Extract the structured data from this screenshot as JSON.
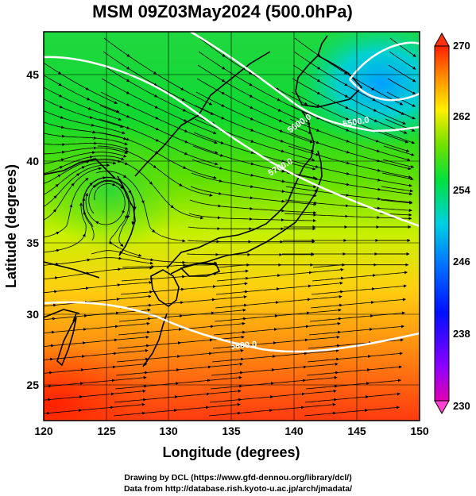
{
  "title": "MSM 09Z03May2024 (500.0hPa)",
  "x_axis": {
    "label": "Longitude (degrees)",
    "ticks": [
      "120",
      "125",
      "130",
      "135",
      "140",
      "145",
      "150"
    ],
    "range": [
      120,
      150
    ]
  },
  "y_axis": {
    "label": "Latitude  (degrees)",
    "ticks": [
      "25",
      "30",
      "35",
      "40",
      "45"
    ],
    "range": [
      22.4,
      47.6
    ]
  },
  "colorbar": {
    "ticks": [
      "270",
      "262",
      "254",
      "246",
      "238",
      "230"
    ],
    "range": [
      230,
      270
    ],
    "colors": [
      "#e000b0",
      "#8a00ff",
      "#0000ff",
      "#0066ff",
      "#00c8ff",
      "#00e8b0",
      "#00e000",
      "#80e000",
      "#ffff00",
      "#ffb000",
      "#ff5000",
      "#ff2000"
    ]
  },
  "contours": [
    {
      "label": "5500.0"
    },
    {
      "label": "5600.0"
    },
    {
      "label": "5700.0"
    },
    {
      "label": "5800.0"
    }
  ],
  "credits": {
    "line1": "Drawing by DCL (https://www.gfd-dennou.org/library/dcl/)",
    "line2": "Data from http://database.rish.kyoto-u.ac.jp/arch/jmadata/"
  }
}
